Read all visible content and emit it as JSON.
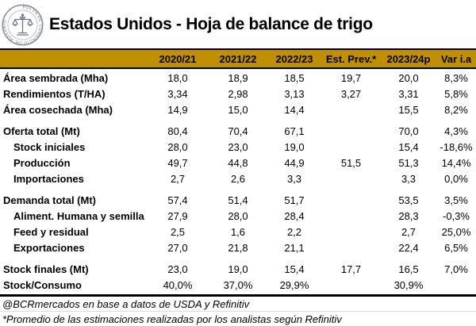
{
  "header": {
    "title": "Estados Unidos - Hoja de balance de trigo",
    "logo_text": "BOLSA DE COMERCIO DE ROSARIO"
  },
  "colors": {
    "header_bg": "#BF8F00",
    "border": "#000000",
    "logo": "#6e7492"
  },
  "table": {
    "columns": [
      "",
      "2020/21",
      "2021/22",
      "2022/23",
      "Est. Prev.*",
      "2023/24p",
      "Var i.a"
    ],
    "sections": [
      {
        "rows": [
          {
            "label": "Área sembrada (Mha)",
            "indent": false,
            "values": [
              "18,0",
              "18,9",
              "18,5",
              "19,7",
              "20,0",
              "8,3%"
            ]
          },
          {
            "label": "Rendimientos (T/HA)",
            "indent": false,
            "values": [
              "3,34",
              "2,98",
              "3,13",
              "3,27",
              "3,31",
              "5,8%"
            ]
          },
          {
            "label": "Área cosechada (Mha)",
            "indent": false,
            "values": [
              "14,9",
              "15,0",
              "14,4",
              "",
              "15,5",
              "8,2%"
            ]
          }
        ]
      },
      {
        "rows": [
          {
            "label": "Oferta total (Mt)",
            "indent": false,
            "values": [
              "80,4",
              "70,4",
              "67,1",
              "",
              "70,0",
              "4,3%"
            ]
          },
          {
            "label": "Stock iniciales",
            "indent": true,
            "values": [
              "28,0",
              "23,0",
              "19,0",
              "",
              "15,4",
              "-18,6%"
            ]
          },
          {
            "label": "Producción",
            "indent": true,
            "values": [
              "49,7",
              "44,8",
              "44,9",
              "51,5",
              "51,3",
              "14,4%"
            ]
          },
          {
            "label": "Importaciones",
            "indent": true,
            "values": [
              "2,7",
              "2,6",
              "3,3",
              "",
              "3,3",
              "0,0%"
            ]
          }
        ]
      },
      {
        "rows": [
          {
            "label": "Demanda total (Mt)",
            "indent": false,
            "values": [
              "57,4",
              "51,4",
              "51,7",
              "",
              "53,5",
              "3,5%"
            ]
          },
          {
            "label": "Aliment. Humana y semilla",
            "indent": true,
            "values": [
              "27,9",
              "28,0",
              "28,4",
              "",
              "28,3",
              "-0,3%"
            ]
          },
          {
            "label": "Feed y residual",
            "indent": true,
            "values": [
              "2,5",
              "1,6",
              "2,2",
              "",
              "2,7",
              "25,0%"
            ]
          },
          {
            "label": "Exportaciones",
            "indent": true,
            "values": [
              "27,0",
              "21,8",
              "21,1",
              "",
              "22,4",
              "6,5%"
            ]
          }
        ]
      },
      {
        "rows": [
          {
            "label": "Stock finales (Mt)",
            "indent": false,
            "values": [
              "23,0",
              "19,0",
              "15,4",
              "17,7",
              "16,5",
              "7,0%"
            ]
          },
          {
            "label": "Stock/Consumo",
            "indent": false,
            "values": [
              "40,0%",
              "37,0%",
              "29,9%",
              "",
              "30,9%",
              ""
            ]
          }
        ]
      }
    ]
  },
  "footer": {
    "source": "@BCRmercados en base a datos de USDA y Refinitiv",
    "estimate_note": "*Promedio de las estimaciones realizadas por los analistas según Refinitiv"
  }
}
